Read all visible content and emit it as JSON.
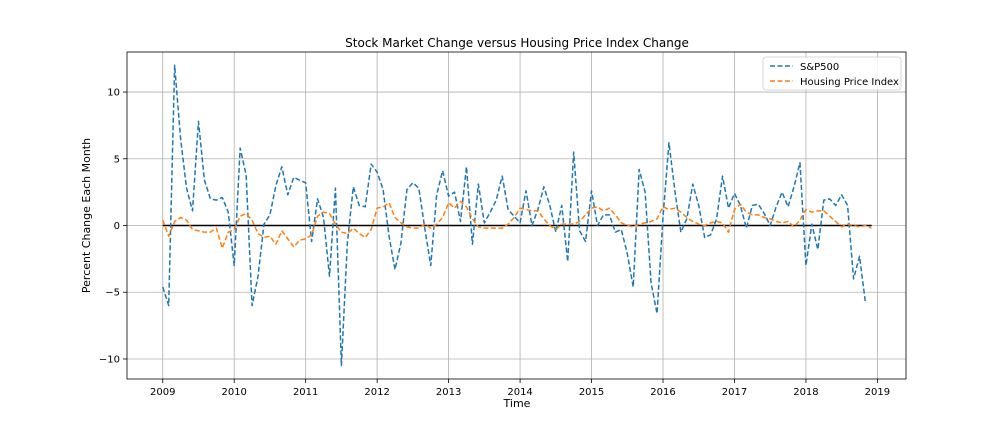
{
  "chart_data": {
    "type": "line",
    "title": "Stock Market Change versus Housing Price Index Change",
    "xlabel": "Time",
    "ylabel": "Percent Change Each Month",
    "xlim": [
      2008.5,
      2019.4
    ],
    "ylim": [
      -11.5,
      13.0
    ],
    "x_ticks": [
      2009,
      2010,
      2011,
      2012,
      2013,
      2014,
      2015,
      2016,
      2017,
      2018,
      2019
    ],
    "x_tick_labels": [
      "2009",
      "2010",
      "2011",
      "2012",
      "2013",
      "2014",
      "2015",
      "2016",
      "2017",
      "2018",
      "2019"
    ],
    "y_ticks": [
      -10,
      -5,
      0,
      5,
      10
    ],
    "y_tick_labels": [
      "−10",
      "−5",
      "0",
      "5",
      "10"
    ],
    "grid": true,
    "legend_position": "top-right",
    "zero_line": {
      "y": 0,
      "x_from": 2009.0,
      "x_to": 2018.92,
      "color": "#000000"
    },
    "series": [
      {
        "name": "S&P500",
        "color": "#1f77b4",
        "style": "dashed",
        "x_start": 2009.0,
        "x_step": 0.08333,
        "values": [
          -4.6,
          -6.0,
          12.0,
          6.5,
          2.8,
          1.1,
          7.8,
          3.4,
          2.0,
          1.9,
          2.1,
          1.0,
          -3.0,
          5.8,
          3.8,
          -6.0,
          -3.8,
          0.1,
          0.8,
          3.0,
          4.4,
          2.3,
          3.6,
          3.4,
          3.2,
          -1.2,
          2.0,
          0.6,
          -3.8,
          2.8,
          -10.5,
          -1.3,
          2.9,
          1.5,
          1.4,
          4.6,
          4.0,
          2.7,
          -0.8,
          -3.3,
          -1.3,
          2.7,
          3.2,
          2.8,
          -0.2,
          -3.0,
          2.3,
          4.1,
          2.2,
          2.5,
          0.3,
          4.4,
          -1.4,
          3.1,
          0.2,
          1.0,
          1.9,
          3.7,
          1.2,
          0.7,
          0.2,
          2.6,
          0.0,
          1.2,
          2.9,
          1.5,
          -0.5,
          1.5,
          -2.7,
          5.5,
          -0.4,
          -1.2,
          2.6,
          0.0,
          0.8,
          0.8,
          -0.5,
          -0.3,
          -2.1,
          -4.6,
          4.2,
          2.5,
          -4.3,
          -6.6,
          0.6,
          6.2,
          2.6,
          -0.5,
          0.5,
          3.1,
          1.5,
          -0.9,
          -0.7,
          0.5,
          3.7,
          1.3,
          2.4,
          1.5,
          -0.2,
          1.5,
          1.6,
          0.9,
          0.0,
          1.4,
          2.5,
          1.4,
          2.9,
          4.7,
          -3.0,
          0.1,
          -1.8,
          1.9,
          2.0,
          1.5,
          2.3,
          1.5,
          -4.0,
          -2.3,
          -5.8
        ]
      },
      {
        "name": "Housing Price Index",
        "color": "#ff7f0e",
        "style": "dashed",
        "x_start": 2009.0,
        "x_step": 0.08333,
        "values": [
          0.4,
          -0.8,
          0.3,
          0.6,
          0.4,
          -0.3,
          -0.4,
          -0.5,
          -0.5,
          -0.2,
          -1.7,
          -0.5,
          -0.3,
          0.7,
          0.9,
          0.4,
          -0.6,
          -0.9,
          -0.8,
          -1.4,
          -0.4,
          -1.0,
          -1.6,
          -1.1,
          -1.0,
          -0.7,
          0.7,
          1.0,
          0.9,
          0.1,
          -0.5,
          -0.6,
          -0.2,
          -0.6,
          -0.9,
          -0.3,
          1.3,
          1.4,
          1.7,
          0.6,
          0.2,
          -0.1,
          -0.2,
          -0.2,
          0.1,
          -0.2,
          0.1,
          0.6,
          1.7,
          1.3,
          1.8,
          1.4,
          0.5,
          -0.1,
          -0.2,
          -0.2,
          -0.2,
          -0.2,
          0.1,
          0.6,
          1.3,
          1.2,
          1.1,
          1.1,
          0.5,
          0.0,
          -0.3,
          0.1,
          0.1,
          0.1,
          0.3,
          0.8,
          1.3,
          1.4,
          1.1,
          1.3,
          0.8,
          0.2,
          0.0,
          -0.1,
          0.1,
          0.2,
          0.3,
          0.5,
          1.4,
          1.2,
          1.3,
          1.0,
          0.6,
          0.3,
          0.1,
          0.0,
          0.2,
          0.3,
          0.2,
          -0.5,
          1.2,
          1.6,
          1.0,
          0.8,
          0.8,
          0.6,
          0.5,
          0.3,
          0.2,
          0.3,
          -0.1,
          0.4,
          1.2,
          1.0,
          1.1,
          1.1,
          0.7,
          0.3,
          -0.1,
          0.1,
          0.0,
          -0.1,
          0.0,
          -0.2
        ]
      }
    ]
  }
}
